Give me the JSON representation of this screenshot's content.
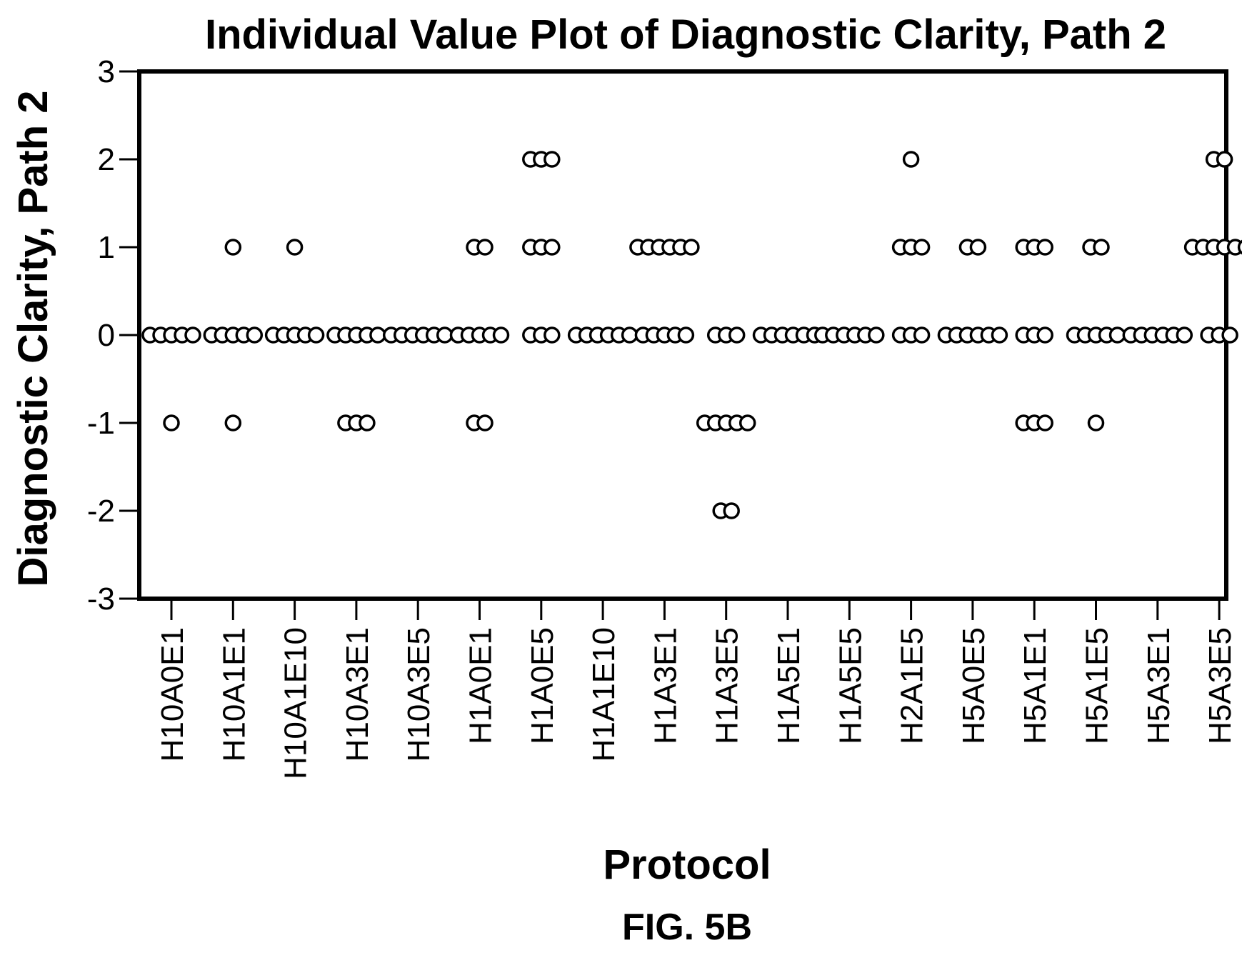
{
  "chart_data": {
    "type": "scatter",
    "title": "Individual Value Plot of Diagnostic Clarity, Path 2",
    "xlabel": "Protocol",
    "ylabel": "Diagnostic Clarity, Path 2",
    "ylim": [
      -3,
      3
    ],
    "yticks": [
      3,
      2,
      1,
      0,
      -1,
      -2,
      -3
    ],
    "grid": false,
    "categories": [
      "H10A0E1",
      "H10A1E1",
      "H10A1E10",
      "H10A3E1",
      "H10A3E5",
      "H1A0E1",
      "H1A0E5",
      "H1A1E10",
      "H1A3E1",
      "H1A3E5",
      "H1A5E1",
      "H1A5E5",
      "H2A1E5",
      "H5A0E5",
      "H5A1E1",
      "H5A1E5",
      "H5A3E1",
      "H5A3E5"
    ],
    "series": [
      {
        "values": [
          [
            0,
            0,
            0,
            0,
            0,
            -1
          ],
          [
            0,
            0,
            0,
            0,
            0,
            1,
            -1
          ],
          [
            0,
            0,
            0,
            0,
            0,
            1
          ],
          [
            0,
            0,
            0,
            0,
            0,
            -1,
            -1,
            -1
          ],
          [
            0,
            0,
            0,
            0,
            0,
            0
          ],
          [
            0,
            0,
            0,
            0,
            0,
            1,
            1,
            -1,
            -1
          ],
          [
            2,
            2,
            2,
            1,
            1,
            1,
            0,
            0,
            0
          ],
          [
            0,
            0,
            0,
            0,
            0,
            0
          ],
          [
            1,
            1,
            1,
            1,
            1,
            1,
            0,
            0,
            0,
            0,
            0
          ],
          [
            0,
            0,
            0,
            -1,
            -1,
            -1,
            -1,
            -1,
            -2,
            -2
          ],
          [
            0,
            0,
            0,
            0,
            0,
            0
          ],
          [
            0,
            0,
            0,
            0,
            0,
            0
          ],
          [
            2,
            1,
            1,
            1,
            0,
            0,
            0
          ],
          [
            1,
            1,
            0,
            0,
            0,
            0,
            0,
            0
          ],
          [
            1,
            1,
            1,
            0,
            0,
            0,
            -1,
            -1,
            -1
          ],
          [
            1,
            1,
            0,
            0,
            0,
            0,
            0,
            -1
          ],
          [
            0,
            0,
            0,
            0,
            0,
            0
          ],
          [
            2,
            2,
            1,
            1,
            1,
            1,
            1,
            1,
            0,
            0,
            0
          ]
        ]
      }
    ]
  },
  "caption": "FIG. 5B"
}
